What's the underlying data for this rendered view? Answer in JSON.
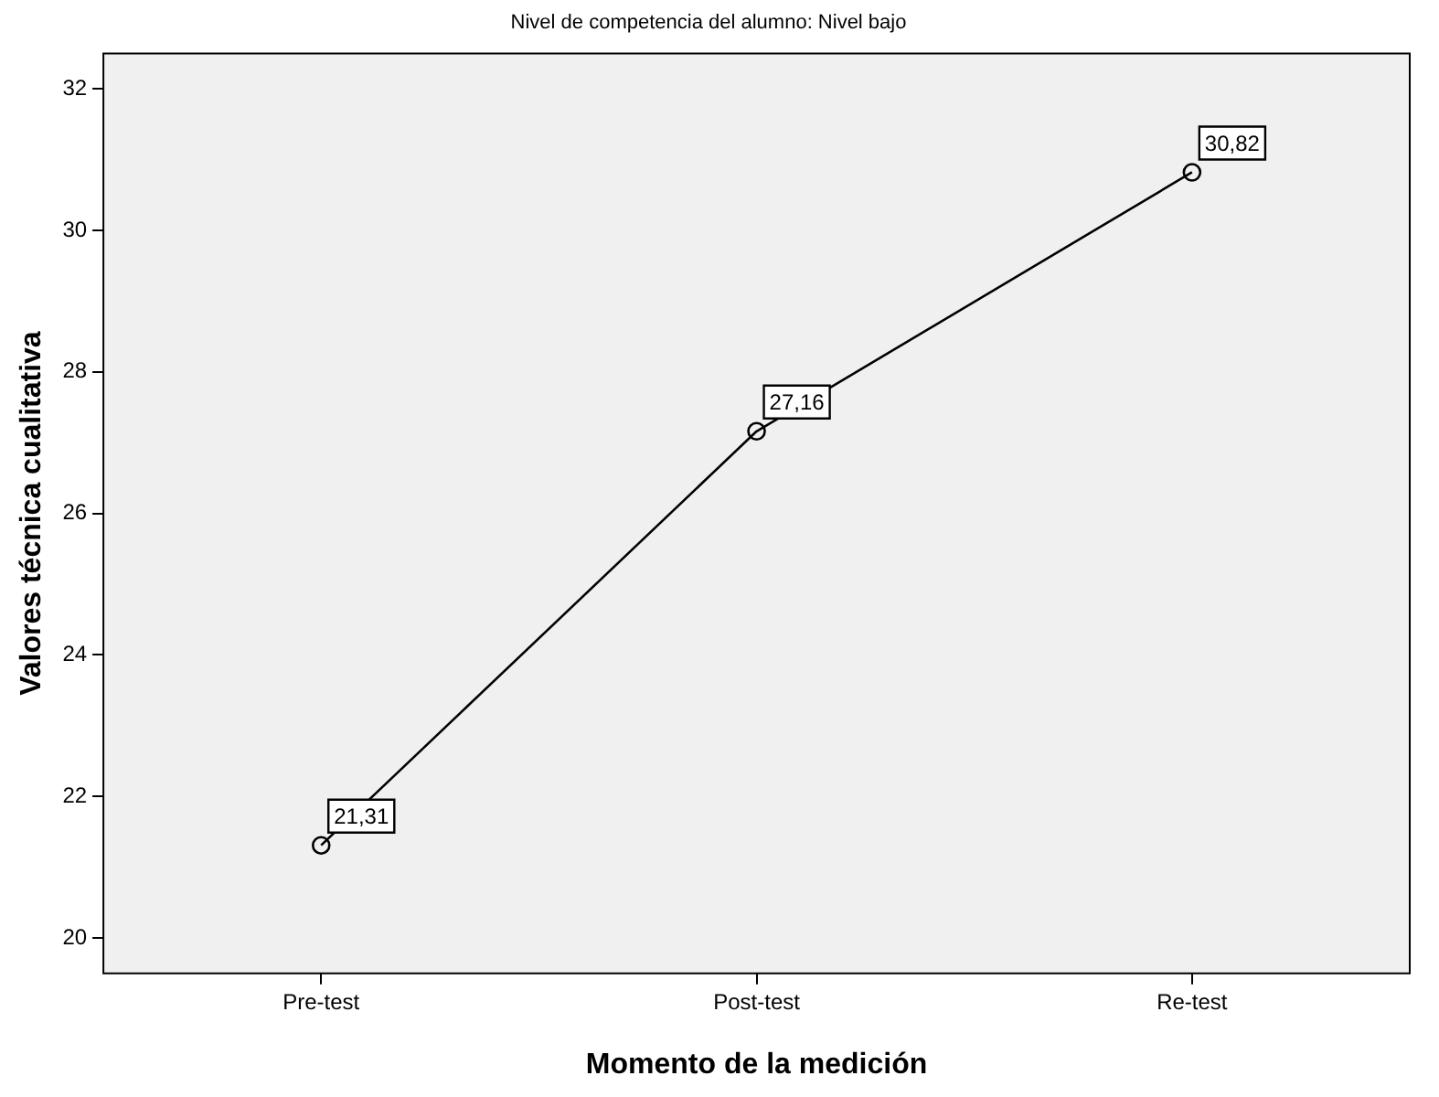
{
  "chart_data": {
    "type": "line",
    "title": "Nivel de competencia del alumno: Nivel bajo",
    "xlabel": "Momento de la medición",
    "ylabel": "Valores técnica cualitativa",
    "categories": [
      "Pre-test",
      "Post-test",
      "Re-test"
    ],
    "series": [
      {
        "color": "#000000",
        "values": [
          21.31,
          27.16,
          30.82
        ],
        "value_labels": [
          "21,31",
          "27,16",
          "30,82"
        ]
      }
    ],
    "ylim": [
      19.5,
      32.5
    ],
    "yticks": [
      20,
      22,
      24,
      26,
      28,
      30,
      32
    ],
    "marker": "circle",
    "line_style": "solid",
    "legend": false
  }
}
